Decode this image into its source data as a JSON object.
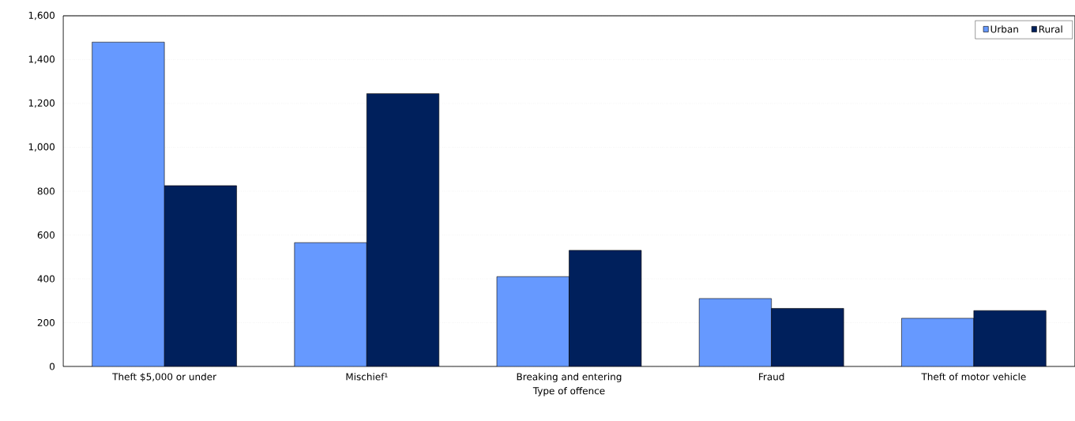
{
  "chart_data": {
    "type": "bar",
    "xlabel": "Type of offence",
    "categories": [
      "Theft $5,000 or under",
      "Mischief¹",
      "Breaking and entering",
      "Fraud",
      "Theft of motor vehicle"
    ],
    "series": [
      {
        "name": "Urban",
        "color": "#6699ff",
        "values": [
          1480,
          565,
          410,
          310,
          220
        ]
      },
      {
        "name": "Rural",
        "color": "#00205c",
        "values": [
          825,
          1245,
          530,
          265,
          255
        ]
      }
    ],
    "ylim": [
      0,
      1600
    ],
    "yticks": [
      0,
      200,
      400,
      600,
      800,
      {
        "value": 1000,
        "label": "1,000"
      },
      {
        "value": 1200,
        "label": "1,200"
      },
      {
        "value": 1400,
        "label": "1,400"
      },
      {
        "value": 1600,
        "label": "1,600"
      }
    ],
    "grid": "y",
    "legend": "top right"
  }
}
